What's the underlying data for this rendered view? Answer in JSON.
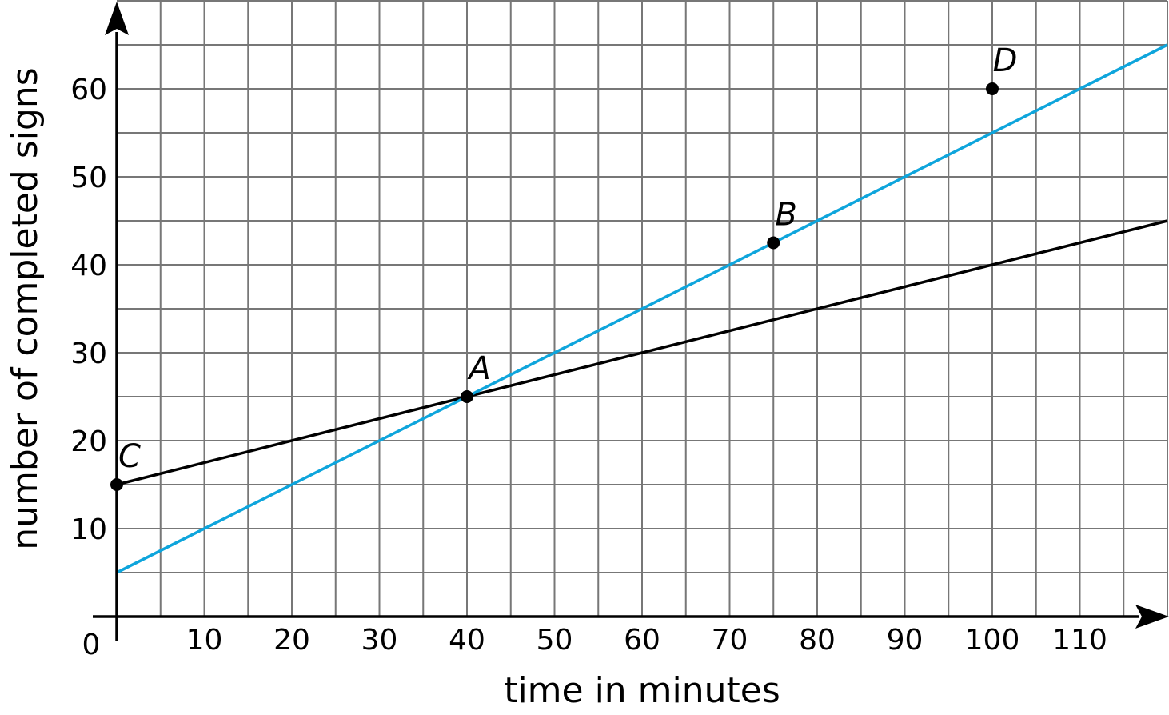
{
  "chart_data": {
    "type": "line",
    "title": "",
    "xlabel": "time in minutes",
    "ylabel": "number of completed signs",
    "origin_label": "0",
    "xlim": [
      0,
      120
    ],
    "ylim": [
      0,
      70
    ],
    "grid": true,
    "grid_step": 5,
    "x_ticks": [
      10,
      20,
      30,
      40,
      50,
      60,
      70,
      80,
      90,
      100,
      110
    ],
    "y_ticks": [
      10,
      20,
      30,
      40,
      50,
      60
    ],
    "series": [
      {
        "color": "#000000",
        "points": [
          [
            0,
            15
          ],
          [
            120,
            45
          ]
        ]
      },
      {
        "color": "#0ea5dc",
        "points": [
          [
            0,
            5
          ],
          [
            120,
            65
          ]
        ]
      }
    ],
    "points": [
      {
        "label": "A",
        "x": 40,
        "y": 25
      },
      {
        "label": "B",
        "x": 75,
        "y": 42.5
      },
      {
        "label": "C",
        "x": 0,
        "y": 15
      },
      {
        "label": "D",
        "x": 100,
        "y": 60
      }
    ]
  }
}
